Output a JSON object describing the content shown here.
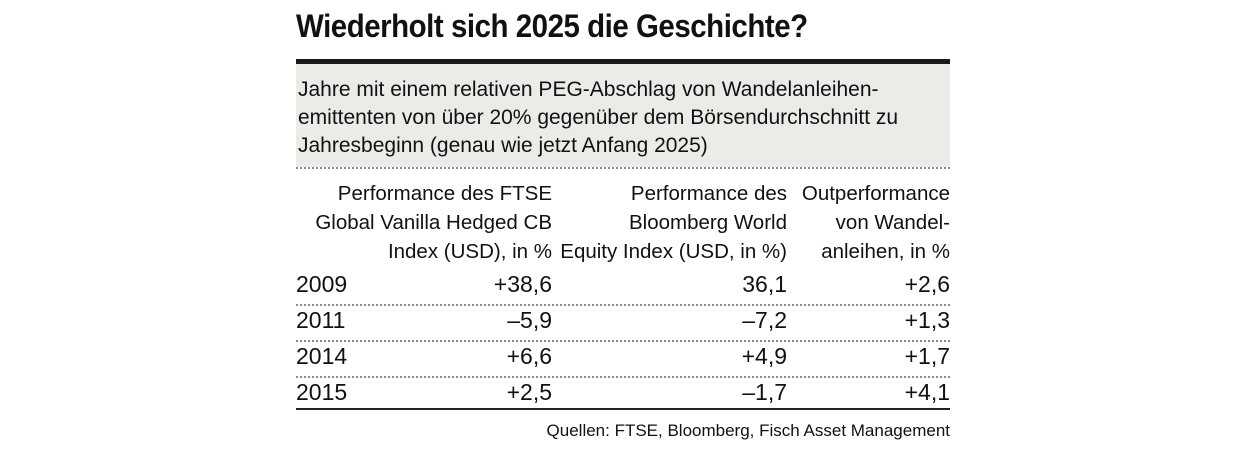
{
  "chart_data": {
    "type": "table",
    "title": "Wiederholt sich 2025 die Geschichte?",
    "subtitle": "Jahre mit einem relativen PEG-Abschlag von Wandelanleihen-emittenten von über 20% gegenüber dem Börsendurchschnitt zu Jahresbeginn (genau wie jetzt Anfang 2025)",
    "subtitle_lines": [
      "Jahre mit einem relativen PEG-Abschlag von Wandelanleihen-",
      "emittenten von über 20% gegenüber dem Börsendurchschnitt zu",
      "Jahresbeginn (genau wie jetzt Anfang 2025)"
    ],
    "columns": [
      "Performance des FTSE\nGlobal Vanilla Hedged CB\nIndex (USD), in %",
      "Performance des\nBloomberg World\nEquity Index (USD, in %)",
      "Outperformance\nvon Wandel-\nanleihen, in %"
    ],
    "rows": [
      {
        "year": "2009",
        "values": [
          38.6,
          36.1,
          2.6
        ],
        "labels": [
          "+38,6",
          "36,1",
          "+2,6"
        ]
      },
      {
        "year": "2011",
        "values": [
          -5.9,
          -7.2,
          1.3
        ],
        "labels": [
          "–5,9",
          "–7,2",
          "+1,3"
        ]
      },
      {
        "year": "2014",
        "values": [
          6.6,
          4.9,
          1.7
        ],
        "labels": [
          "+6,6",
          "+4,9",
          "+1,7"
        ]
      },
      {
        "year": "2015",
        "values": [
          2.5,
          -1.7,
          4.1
        ],
        "labels": [
          "+2,5",
          "–1,7",
          "+4,1"
        ]
      }
    ],
    "source": "Quellen: FTSE, Bloomberg, Fisch Asset Management"
  }
}
